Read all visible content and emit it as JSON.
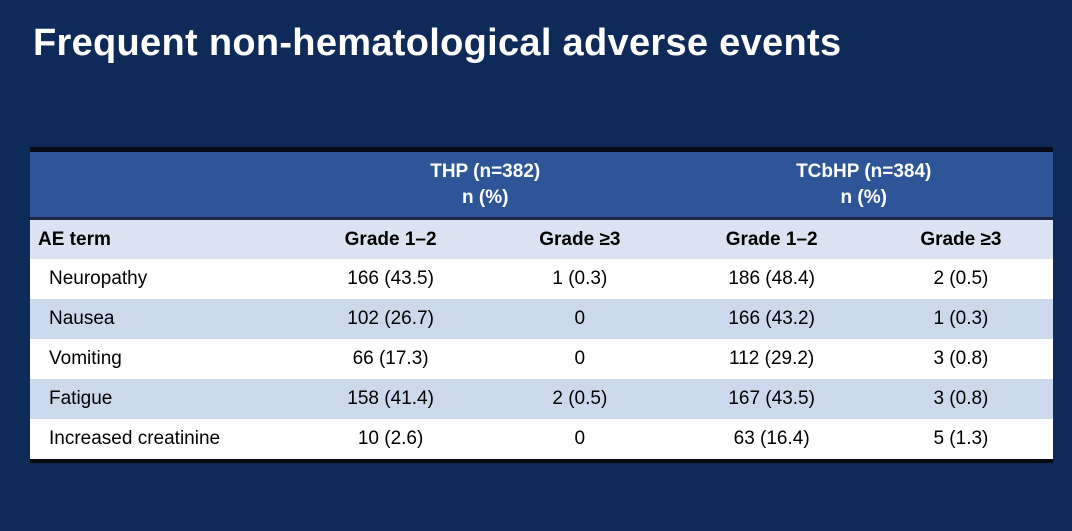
{
  "slide": {
    "title": "Frequent non-hematological adverse events"
  },
  "table": {
    "groups": [
      {
        "line1": "THP (n=382)",
        "line2": "n (%)"
      },
      {
        "line1": "TCbHP (n=384)",
        "line2": "n (%)"
      }
    ],
    "columns": [
      "AE term",
      "Grade 1–2",
      "Grade ≥3",
      "Grade 1–2",
      "Grade ≥3"
    ],
    "rows": [
      {
        "cells": [
          "Neuropathy",
          "166 (43.5)",
          "1 (0.3)",
          "186 (48.4)",
          "2 (0.5)"
        ]
      },
      {
        "cells": [
          "Nausea",
          "102 (26.7)",
          "0",
          "166 (43.2)",
          "1 (0.3)"
        ]
      },
      {
        "cells": [
          "Vomiting",
          "66 (17.3)",
          "0",
          "112 (29.2)",
          "3 (0.8)"
        ]
      },
      {
        "cells": [
          "Fatigue",
          "158 (41.4)",
          "2 (0.5)",
          "167 (43.5)",
          "3 (0.8)"
        ]
      },
      {
        "cells": [
          "Increased creatinine",
          "10 (2.6)",
          "0",
          "63 (16.4)",
          "5 (1.3)"
        ]
      }
    ],
    "colors": {
      "slide_background": "#0d2a58",
      "title_text": "#ffffff",
      "group_header_background": "#2e5597",
      "group_header_text": "#ffffff",
      "column_header_background": "#dbe3f2",
      "row_stripe": "#ccd9ec",
      "row_plain": "#ffffff",
      "table_border_dark": "#070b14",
      "body_text": "#000000"
    }
  }
}
